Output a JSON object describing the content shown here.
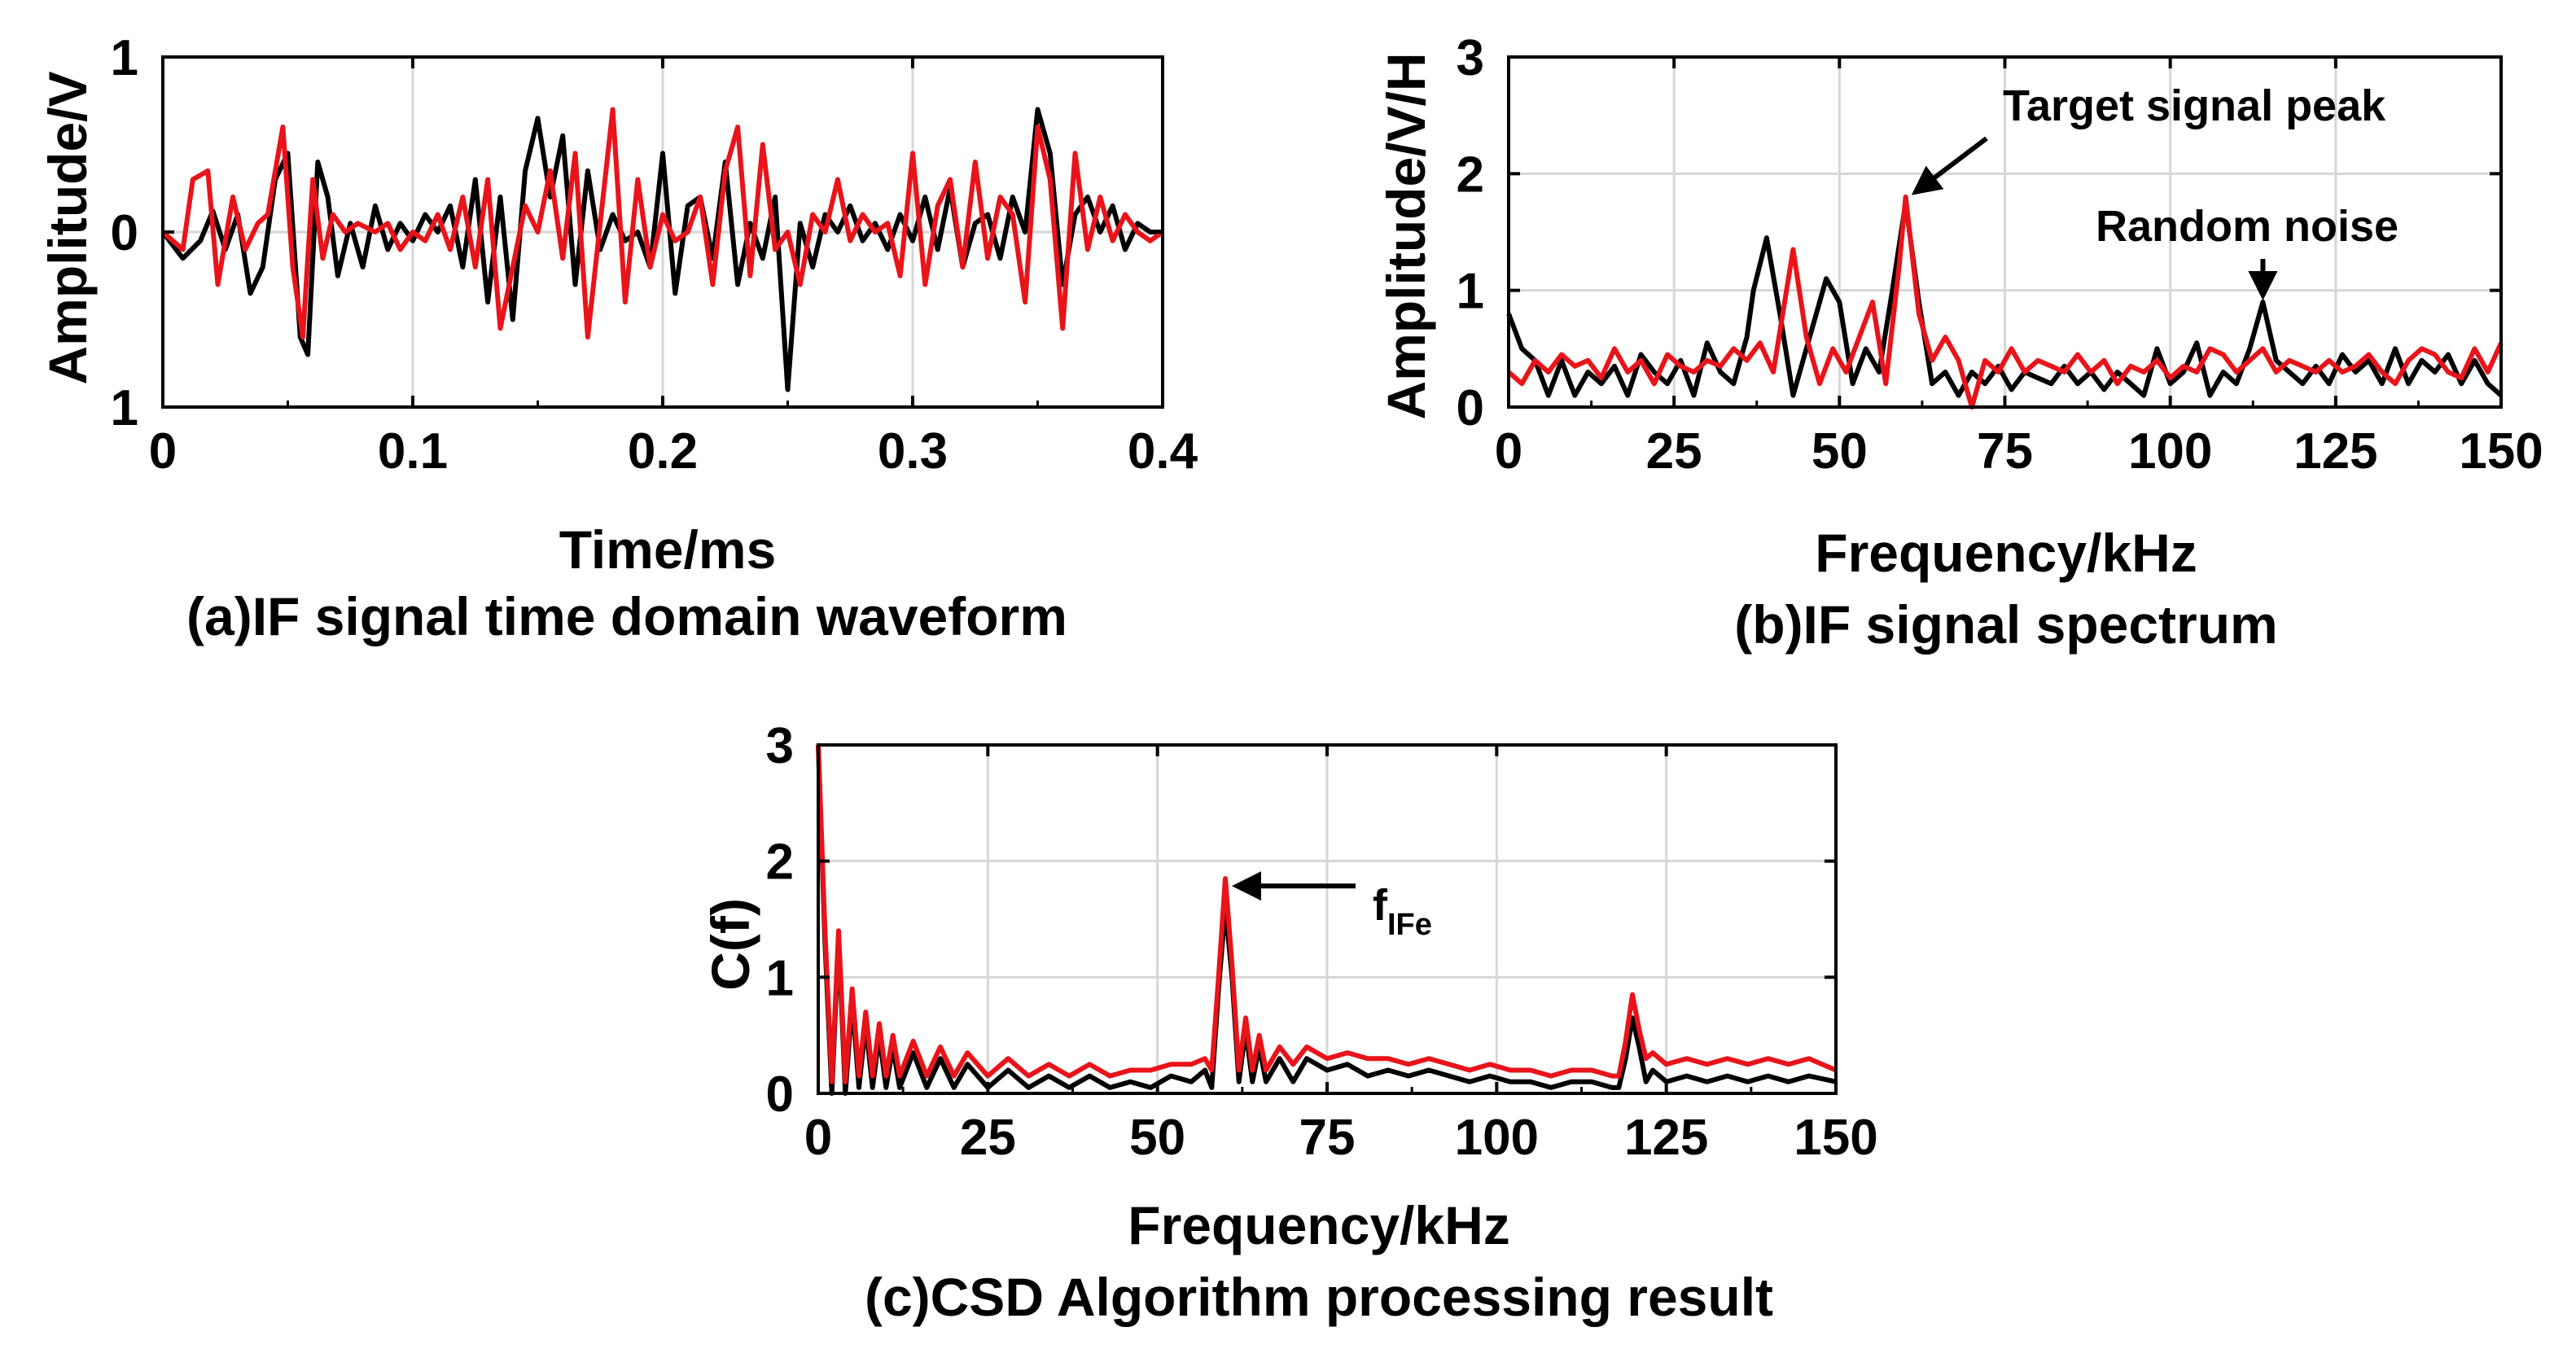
{
  "chart_data": [
    {
      "id": "a",
      "type": "line",
      "caption": "(a)IF signal time domain waveform",
      "xlabel": "Time/ms",
      "ylabel": "Amplitude/V",
      "xlim": [
        0,
        0.4
      ],
      "ylim": [
        -1,
        1
      ],
      "xticks": [
        0,
        0.1,
        0.2,
        0.3,
        0.4
      ],
      "xtick_labels": [
        "0",
        "0.1",
        "0.2",
        "0.3",
        "0.4"
      ],
      "yticks": [
        -1,
        0,
        1
      ],
      "ytick_labels": [
        "1",
        "0",
        "1"
      ],
      "grid": true,
      "series": [
        {
          "name": "black",
          "color": "#000000",
          "x": [
            0,
            0.008,
            0.015,
            0.02,
            0.025,
            0.03,
            0.035,
            0.04,
            0.045,
            0.05,
            0.055,
            0.058,
            0.062,
            0.066,
            0.07,
            0.075,
            0.08,
            0.085,
            0.09,
            0.095,
            0.1,
            0.105,
            0.11,
            0.115,
            0.12,
            0.125,
            0.13,
            0.135,
            0.14,
            0.145,
            0.15,
            0.155,
            0.16,
            0.165,
            0.17,
            0.175,
            0.18,
            0.185,
            0.19,
            0.195,
            0.2,
            0.205,
            0.21,
            0.215,
            0.22,
            0.225,
            0.23,
            0.235,
            0.24,
            0.245,
            0.25,
            0.255,
            0.26,
            0.265,
            0.27,
            0.275,
            0.28,
            0.285,
            0.29,
            0.295,
            0.3,
            0.305,
            0.31,
            0.315,
            0.32,
            0.325,
            0.33,
            0.335,
            0.34,
            0.345,
            0.35,
            0.355,
            0.36,
            0.365,
            0.37,
            0.375,
            0.38,
            0.385,
            0.39,
            0.395,
            0.4
          ],
          "y": [
            0,
            -0.15,
            -0.05,
            0.12,
            -0.1,
            0.1,
            -0.35,
            -0.2,
            0.3,
            0.45,
            -0.6,
            -0.7,
            0.4,
            0.2,
            -0.25,
            0.05,
            -0.2,
            0.15,
            -0.1,
            0.05,
            -0.05,
            0.1,
            0.0,
            0.15,
            -0.2,
            0.3,
            -0.4,
            0.2,
            -0.5,
            0.35,
            0.65,
            0.2,
            0.55,
            -0.3,
            0.35,
            -0.1,
            0.1,
            -0.05,
            0.0,
            -0.2,
            0.45,
            -0.35,
            0.15,
            0.2,
            -0.15,
            0.4,
            -0.3,
            0.05,
            -0.15,
            0.2,
            -0.9,
            0.05,
            -0.2,
            0.1,
            0.0,
            0.15,
            -0.05,
            0.05,
            -0.1,
            0.1,
            -0.05,
            0.2,
            -0.1,
            0.25,
            -0.2,
            0.05,
            0.1,
            -0.15,
            0.2,
            0.0,
            0.7,
            0.45,
            -0.3,
            0.1,
            0.2,
            0.0,
            0.15,
            -0.1,
            0.05,
            0.0,
            0.0
          ]
        },
        {
          "name": "red",
          "color": "#e8141a",
          "x": [
            0,
            0.008,
            0.012,
            0.018,
            0.022,
            0.028,
            0.033,
            0.038,
            0.042,
            0.048,
            0.052,
            0.056,
            0.06,
            0.064,
            0.068,
            0.073,
            0.078,
            0.085,
            0.09,
            0.095,
            0.1,
            0.105,
            0.11,
            0.115,
            0.12,
            0.125,
            0.13,
            0.135,
            0.14,
            0.145,
            0.15,
            0.155,
            0.16,
            0.165,
            0.17,
            0.175,
            0.18,
            0.185,
            0.19,
            0.195,
            0.2,
            0.205,
            0.21,
            0.215,
            0.22,
            0.225,
            0.23,
            0.235,
            0.24,
            0.245,
            0.25,
            0.255,
            0.26,
            0.265,
            0.27,
            0.275,
            0.28,
            0.285,
            0.29,
            0.295,
            0.3,
            0.305,
            0.31,
            0.315,
            0.32,
            0.325,
            0.33,
            0.335,
            0.34,
            0.345,
            0.35,
            0.355,
            0.36,
            0.365,
            0.37,
            0.375,
            0.38,
            0.385,
            0.39,
            0.395,
            0.4
          ],
          "y": [
            0,
            -0.1,
            0.3,
            0.35,
            -0.3,
            0.2,
            -0.1,
            0.05,
            0.1,
            0.6,
            -0.2,
            -0.6,
            0.3,
            -0.15,
            0.1,
            0.0,
            0.05,
            0.0,
            0.05,
            -0.1,
            0.0,
            -0.05,
            0.1,
            -0.1,
            0.2,
            -0.2,
            0.3,
            -0.55,
            -0.2,
            0.15,
            0.0,
            0.35,
            -0.15,
            0.45,
            -0.6,
            0.05,
            0.7,
            -0.4,
            0.3,
            -0.2,
            0.1,
            -0.05,
            0.0,
            0.2,
            -0.3,
            0.35,
            0.6,
            -0.25,
            0.5,
            -0.1,
            0.0,
            -0.3,
            0.1,
            0.0,
            0.3,
            -0.05,
            0.1,
            0.0,
            0.05,
            -0.25,
            0.45,
            -0.3,
            0.15,
            0.3,
            -0.2,
            0.4,
            -0.15,
            0.2,
            0.1,
            -0.4,
            0.6,
            0.3,
            -0.55,
            0.45,
            -0.1,
            0.2,
            -0.05,
            0.1,
            0.0,
            -0.05,
            0.0
          ]
        }
      ]
    },
    {
      "id": "b",
      "type": "line",
      "caption": "(b)IF signal spectrum",
      "xlabel": "Frequency/kHz",
      "ylabel": "Amplitude/V/H",
      "xlim": [
        0,
        150
      ],
      "ylim": [
        0,
        3
      ],
      "xticks": [
        0,
        25,
        50,
        75,
        100,
        125,
        150
      ],
      "xtick_labels": [
        "0",
        "25",
        "50",
        "75",
        "100",
        "125",
        "150"
      ],
      "yticks": [
        0,
        1,
        2,
        3
      ],
      "ytick_labels": [
        "0",
        "1",
        "2",
        "3"
      ],
      "grid": true,
      "annotations": [
        {
          "text": "Target signal peak",
          "x": 60,
          "y": 1.8
        },
        {
          "text": "Random noise",
          "x": 114,
          "y": 0.9
        }
      ],
      "series": [
        {
          "name": "black",
          "color": "#000000",
          "x": [
            0,
            2,
            4,
            6,
            8,
            10,
            12,
            14,
            16,
            18,
            20,
            22,
            24,
            26,
            28,
            30,
            32,
            34,
            36,
            37,
            39,
            41,
            43,
            45,
            47,
            48,
            50,
            52,
            54,
            56,
            58,
            60,
            62,
            64,
            66,
            68,
            70,
            72,
            74,
            76,
            78,
            80,
            82,
            84,
            86,
            88,
            90,
            92,
            94,
            96,
            98,
            100,
            102,
            104,
            106,
            108,
            110,
            112,
            114,
            116,
            118,
            120,
            122,
            124,
            126,
            128,
            130,
            132,
            134,
            136,
            138,
            140,
            142,
            144,
            146,
            148,
            150
          ],
          "y": [
            0.8,
            0.5,
            0.4,
            0.1,
            0.4,
            0.1,
            0.3,
            0.2,
            0.35,
            0.1,
            0.45,
            0.3,
            0.2,
            0.4,
            0.1,
            0.55,
            0.3,
            0.2,
            0.6,
            1.0,
            1.45,
            0.8,
            0.1,
            0.5,
            0.9,
            1.1,
            0.9,
            0.2,
            0.5,
            0.3,
            1.0,
            1.75,
            0.9,
            0.2,
            0.3,
            0.1,
            0.3,
            0.2,
            0.35,
            0.15,
            0.3,
            0.25,
            0.2,
            0.35,
            0.2,
            0.3,
            0.15,
            0.3,
            0.2,
            0.1,
            0.5,
            0.2,
            0.3,
            0.55,
            0.1,
            0.3,
            0.2,
            0.5,
            0.9,
            0.4,
            0.3,
            0.2,
            0.35,
            0.2,
            0.45,
            0.3,
            0.4,
            0.2,
            0.5,
            0.2,
            0.4,
            0.3,
            0.45,
            0.2,
            0.4,
            0.2,
            0.1
          ]
        },
        {
          "name": "red",
          "color": "#e8141a",
          "x": [
            0,
            2,
            4,
            6,
            8,
            10,
            12,
            14,
            16,
            18,
            20,
            22,
            24,
            26,
            28,
            30,
            32,
            34,
            36,
            38,
            40,
            42,
            43,
            45,
            47,
            49,
            51,
            53,
            55,
            57,
            59,
            60,
            62,
            64,
            66,
            68,
            70,
            72,
            74,
            76,
            78,
            80,
            82,
            84,
            86,
            88,
            90,
            92,
            94,
            96,
            98,
            100,
            102,
            104,
            106,
            108,
            110,
            112,
            114,
            116,
            118,
            120,
            122,
            124,
            126,
            128,
            130,
            132,
            134,
            136,
            138,
            140,
            142,
            144,
            146,
            148,
            150
          ],
          "y": [
            0.3,
            0.2,
            0.4,
            0.3,
            0.45,
            0.35,
            0.4,
            0.25,
            0.5,
            0.3,
            0.4,
            0.2,
            0.45,
            0.35,
            0.3,
            0.4,
            0.35,
            0.5,
            0.4,
            0.55,
            0.3,
            1.0,
            1.35,
            0.6,
            0.2,
            0.5,
            0.3,
            0.6,
            0.9,
            0.2,
            1.2,
            1.8,
            0.8,
            0.4,
            0.6,
            0.4,
            0.0,
            0.4,
            0.3,
            0.5,
            0.3,
            0.4,
            0.35,
            0.3,
            0.45,
            0.3,
            0.4,
            0.2,
            0.35,
            0.3,
            0.4,
            0.25,
            0.35,
            0.3,
            0.5,
            0.45,
            0.3,
            0.4,
            0.5,
            0.3,
            0.4,
            0.35,
            0.3,
            0.4,
            0.3,
            0.35,
            0.45,
            0.3,
            0.2,
            0.4,
            0.5,
            0.45,
            0.3,
            0.25,
            0.5,
            0.3,
            0.55
          ]
        }
      ]
    },
    {
      "id": "c",
      "type": "line",
      "caption": "(c)CSD Algorithm processing result",
      "xlabel": "Frequency/kHz",
      "ylabel": "C(f)",
      "xlim": [
        0,
        150
      ],
      "ylim": [
        0,
        3
      ],
      "xticks": [
        0,
        25,
        50,
        75,
        100,
        125,
        150
      ],
      "xtick_labels": [
        "0",
        "25",
        "50",
        "75",
        "100",
        "125",
        "150"
      ],
      "yticks": [
        0,
        1,
        2,
        3
      ],
      "ytick_labels": [
        "0",
        "1",
        "2",
        "3"
      ],
      "grid": true,
      "annotations": [
        {
          "text": "f",
          "subscript": "IFe",
          "x": 60,
          "y": 1.8
        }
      ],
      "series": [
        {
          "name": "black",
          "color": "#000000",
          "x": [
            0,
            1,
            2,
            3,
            4,
            5,
            6,
            7,
            8,
            9,
            10,
            11,
            12,
            14,
            16,
            18,
            20,
            22,
            25,
            28,
            31,
            34,
            37,
            40,
            43,
            46,
            49,
            52,
            55,
            57,
            58,
            59,
            60,
            61,
            62,
            63,
            64,
            65,
            66,
            68,
            70,
            72,
            75,
            78,
            81,
            84,
            87,
            90,
            93,
            96,
            99,
            102,
            105,
            108,
            111,
            114,
            117,
            118,
            119,
            120,
            121,
            122,
            123,
            125,
            128,
            131,
            134,
            137,
            140,
            143,
            146,
            150
          ],
          "y": [
            3.0,
            1.3,
            0.0,
            1.35,
            0.0,
            0.8,
            0.05,
            0.6,
            0.05,
            0.5,
            0.05,
            0.4,
            0.05,
            0.35,
            0.05,
            0.3,
            0.05,
            0.25,
            0.05,
            0.2,
            0.05,
            0.15,
            0.05,
            0.15,
            0.05,
            0.1,
            0.05,
            0.15,
            0.1,
            0.2,
            0.05,
            0.9,
            1.6,
            1.0,
            0.1,
            0.55,
            0.1,
            0.4,
            0.1,
            0.3,
            0.1,
            0.3,
            0.2,
            0.25,
            0.15,
            0.2,
            0.15,
            0.2,
            0.15,
            0.1,
            0.15,
            0.1,
            0.1,
            0.05,
            0.1,
            0.1,
            0.05,
            0.05,
            0.3,
            0.65,
            0.4,
            0.1,
            0.2,
            0.1,
            0.15,
            0.1,
            0.15,
            0.1,
            0.15,
            0.1,
            0.15,
            0.1
          ]
        },
        {
          "name": "red",
          "color": "#e8141a",
          "x": [
            0,
            1,
            2,
            3,
            4,
            5,
            6,
            7,
            8,
            9,
            10,
            11,
            12,
            14,
            16,
            18,
            20,
            22,
            25,
            28,
            31,
            34,
            37,
            40,
            43,
            46,
            49,
            52,
            55,
            57,
            58,
            59,
            60,
            61,
            62,
            63,
            64,
            65,
            66,
            68,
            70,
            72,
            75,
            78,
            81,
            84,
            87,
            90,
            93,
            96,
            99,
            102,
            105,
            108,
            111,
            114,
            117,
            118,
            119,
            120,
            121,
            122,
            123,
            125,
            128,
            131,
            134,
            137,
            140,
            143,
            146,
            150
          ],
          "y": [
            3.0,
            1.4,
            0.1,
            1.4,
            0.1,
            0.9,
            0.15,
            0.7,
            0.15,
            0.6,
            0.15,
            0.5,
            0.15,
            0.45,
            0.15,
            0.4,
            0.15,
            0.35,
            0.15,
            0.3,
            0.15,
            0.25,
            0.15,
            0.25,
            0.15,
            0.2,
            0.2,
            0.25,
            0.25,
            0.3,
            0.2,
            1.0,
            1.85,
            1.1,
            0.2,
            0.65,
            0.2,
            0.5,
            0.2,
            0.4,
            0.25,
            0.4,
            0.3,
            0.35,
            0.3,
            0.3,
            0.25,
            0.3,
            0.25,
            0.2,
            0.25,
            0.2,
            0.2,
            0.15,
            0.2,
            0.2,
            0.15,
            0.15,
            0.45,
            0.85,
            0.55,
            0.3,
            0.35,
            0.25,
            0.3,
            0.25,
            0.3,
            0.25,
            0.3,
            0.25,
            0.3,
            0.2
          ]
        }
      ]
    }
  ]
}
